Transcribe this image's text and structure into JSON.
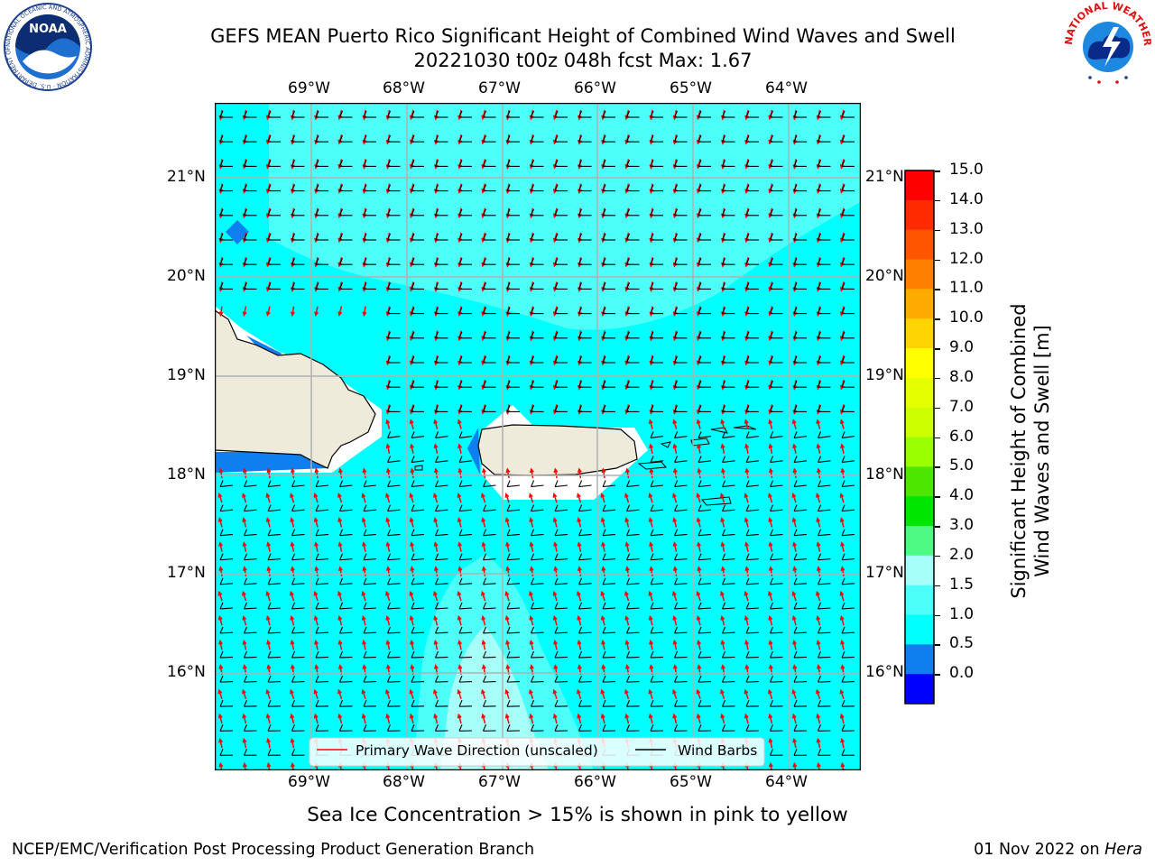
{
  "header": {
    "title_line1": "GEFS MEAN Puerto Rico Significant Height of Combined Wind Waves and Swell",
    "title_line2": "20221030 t00z 048h fcst   Max: 1.67"
  },
  "logos": {
    "left": {
      "text": "NOAA",
      "ring_text": "NATIONAL OCEANIC AND ATMOSPHERIC ADMINISTRATION · U.S. DEPARTMENT OF COMMERCE",
      "icon": "noaa-logo-icon"
    },
    "right": {
      "ring_text": "NATIONAL WEATHER SERVICE",
      "icon": "nws-logo-icon"
    }
  },
  "map": {
    "lon_labels": [
      "69°W",
      "68°W",
      "67°W",
      "66°W",
      "65°W",
      "64°W"
    ],
    "lat_labels": [
      "21°N",
      "20°N",
      "19°N",
      "18°N",
      "17°N",
      "16°N"
    ],
    "colors": {
      "ocean": "#00ffff",
      "ocean_light": "#4dfff9",
      "ocean_lighter": "#a6fff8",
      "land": "#efebdb",
      "deep": "#0f7ff0",
      "wave_arrow": "#ff0000",
      "barb": "#000000"
    },
    "legend": {
      "primary_wave": "Primary Wave Direction (unscaled)",
      "wind_barbs": "Wind Barbs"
    }
  },
  "colorbar": {
    "label_line1": "Significant Height of Combined",
    "label_line2": "Wind Waves and Swell [m]",
    "ticks": [
      "15.0",
      "14.0",
      "13.0",
      "12.0",
      "11.0",
      "10.0",
      "9.0",
      "8.0",
      "7.0",
      "6.0",
      "5.0",
      "4.0",
      "3.0",
      "2.0",
      "1.5",
      "1.0",
      "0.5",
      "0.0"
    ],
    "colors_top_to_bottom": [
      "#ff0000",
      "#ff2a00",
      "#ff5500",
      "#ff8000",
      "#ffaa00",
      "#ffd400",
      "#ffff00",
      "#e6ff00",
      "#ccff00",
      "#99ff00",
      "#4ce600",
      "#00e600",
      "#4dfa84",
      "#a6fff8",
      "#4dfff9",
      "#00ffff",
      "#0f7ff0",
      "#0000ff"
    ]
  },
  "footer": {
    "sea_ice_note": "Sea Ice Concentration > 15% is shown in pink to yellow",
    "credit": "NCEP/EMC/Verification Post Processing Product Generation Branch",
    "date": "01 Nov 2022 on ",
    "host": "Hera"
  }
}
